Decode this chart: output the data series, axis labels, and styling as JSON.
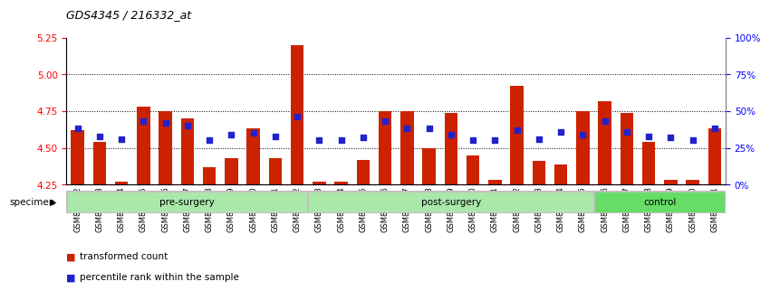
{
  "title": "GDS4345 / 216332_at",
  "samples": [
    "GSM842012",
    "GSM842013",
    "GSM842014",
    "GSM842015",
    "GSM842016",
    "GSM842017",
    "GSM842018",
    "GSM842019",
    "GSM842020",
    "GSM842021",
    "GSM842022",
    "GSM842023",
    "GSM842024",
    "GSM842025",
    "GSM842026",
    "GSM842027",
    "GSM842028",
    "GSM842029",
    "GSM842030",
    "GSM842031",
    "GSM842032",
    "GSM842033",
    "GSM842034",
    "GSM842035",
    "GSM842036",
    "GSM842037",
    "GSM842038",
    "GSM842039",
    "GSM842040",
    "GSM842041"
  ],
  "red_values": [
    4.62,
    4.54,
    4.27,
    4.78,
    4.75,
    4.7,
    4.37,
    4.43,
    4.63,
    4.43,
    5.2,
    4.27,
    4.27,
    4.42,
    4.75,
    4.75,
    4.5,
    4.74,
    4.45,
    4.28,
    4.92,
    4.41,
    4.39,
    4.75,
    4.82,
    4.74,
    4.54,
    4.28,
    4.28,
    4.63
  ],
  "blue_values": [
    38,
    33,
    31,
    43,
    42,
    40,
    30,
    34,
    35,
    33,
    46,
    30,
    30,
    32,
    43,
    38,
    38,
    34,
    30,
    30,
    37,
    31,
    36,
    34,
    43,
    36,
    33,
    32,
    30,
    38
  ],
  "groups": [
    {
      "label": "pre-surgery",
      "start": 0,
      "end": 11,
      "color": "#aae8aa"
    },
    {
      "label": "post-surgery",
      "start": 11,
      "end": 24,
      "color": "#aae8aa"
    },
    {
      "label": "control",
      "start": 24,
      "end": 30,
      "color": "#66dd66"
    }
  ],
  "ylim_left": [
    4.25,
    5.25
  ],
  "ylim_right": [
    0,
    100
  ],
  "yticks_left": [
    4.25,
    4.5,
    4.75,
    5.0,
    5.25
  ],
  "yticks_right": [
    0,
    25,
    50,
    75,
    100
  ],
  "ytick_labels_right": [
    "0%",
    "25%",
    "50%",
    "75%",
    "100%"
  ],
  "hlines": [
    4.5,
    4.75,
    5.0
  ],
  "bar_color": "#cc2200",
  "blue_color": "#2222cc",
  "bar_bottom": 4.25,
  "legend_red": "transformed count",
  "legend_blue": "percentile rank within the sample",
  "bar_width": 0.6,
  "bg_color": "#f0f0f0"
}
